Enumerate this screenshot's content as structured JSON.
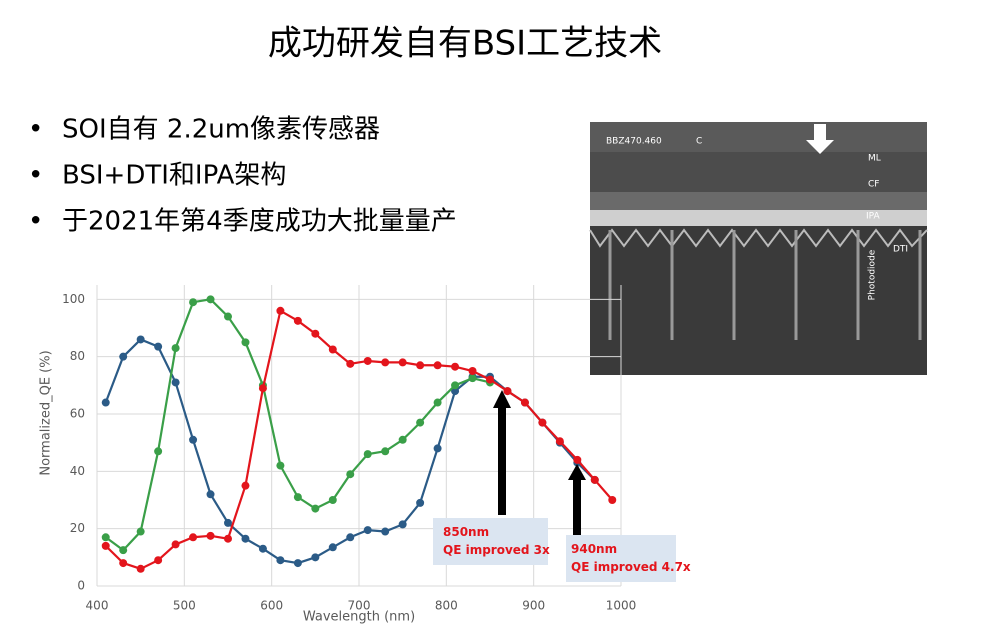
{
  "title": "成功研发自有BSI工艺技术",
  "bullets": [
    "SOI自有 2.2um像素传感器",
    "BSI+DTI和IPA架构",
    "于2021年第4季度成功大批量量产"
  ],
  "image": {
    "labels": [
      "BBZ470.460",
      "C",
      "ML",
      "CF",
      "IPA",
      "DTI",
      "Photodiode"
    ]
  },
  "chart_data": {
    "type": "line",
    "xlabel": "Wavelength (nm)",
    "ylabel": "Normalized_QE (%)",
    "xlim": [
      400,
      1000
    ],
    "xticks": [
      400,
      500,
      600,
      700,
      800,
      900,
      1000
    ],
    "ylim": [
      0,
      105
    ],
    "yticks": [
      0,
      20,
      40,
      60,
      80,
      100
    ],
    "grid": true,
    "series": [
      {
        "name": "blue",
        "color": "#2b5b87",
        "x": [
          410,
          430,
          450,
          470,
          490,
          510,
          530,
          550,
          570,
          590,
          610,
          630,
          650,
          670,
          690,
          710,
          730,
          750,
          770,
          790,
          810,
          830,
          850,
          870,
          890,
          910,
          930,
          950,
          970
        ],
        "values": [
          64,
          80,
          86,
          83.5,
          71,
          51,
          32,
          22,
          16.5,
          13,
          9,
          8,
          10,
          13.5,
          17,
          19.5,
          19,
          21.5,
          29,
          48,
          68,
          73,
          73,
          68,
          64,
          57,
          50,
          43,
          37
        ]
      },
      {
        "name": "green",
        "color": "#3a9f48",
        "x": [
          410,
          430,
          450,
          470,
          490,
          510,
          530,
          550,
          570,
          590,
          610,
          630,
          650,
          670,
          690,
          710,
          730,
          750,
          770,
          790,
          810,
          830,
          850
        ],
        "values": [
          17,
          12.5,
          19,
          47,
          83,
          99,
          100,
          94,
          85,
          70,
          42,
          31,
          27,
          30,
          39,
          46,
          47,
          51,
          57,
          64,
          70,
          72.5,
          71
        ]
      },
      {
        "name": "red",
        "color": "#e3151c",
        "x": [
          410,
          430,
          450,
          470,
          490,
          510,
          530,
          550,
          570,
          590,
          610,
          630,
          650,
          670,
          690,
          710,
          730,
          750,
          770,
          790,
          810,
          830,
          850,
          870,
          890,
          910,
          930,
          950,
          970,
          990
        ],
        "values": [
          14,
          8,
          6,
          9,
          14.5,
          17,
          17.5,
          16.5,
          35,
          69,
          96,
          92.5,
          88,
          82.5,
          77.5,
          78.5,
          78,
          78,
          77,
          77,
          76.5,
          75,
          72,
          68,
          64,
          57,
          50.5,
          44,
          37,
          30
        ]
      }
    ],
    "annotations": [
      "850nm QE improved 3x",
      "940nm QE improved 4.7x"
    ]
  }
}
